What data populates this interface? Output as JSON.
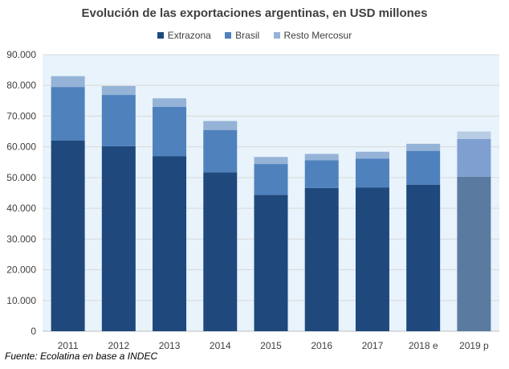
{
  "chart_data": {
    "type": "bar",
    "stacked": true,
    "title": "Evolución de las exportaciones argentinas, en USD millones",
    "categories": [
      "2011",
      "2012",
      "2013",
      "2014",
      "2015",
      "2016",
      "2017",
      "2018 e",
      "2019 p"
    ],
    "series": [
      {
        "name": "Extrazona",
        "color": "#1f497d",
        "values": [
          62100,
          60200,
          57000,
          51700,
          44400,
          46600,
          46800,
          47700,
          50300
        ]
      },
      {
        "name": "Brasil",
        "color": "#4f81bd",
        "values": [
          17400,
          16700,
          16000,
          13800,
          10000,
          9000,
          9400,
          11000,
          12300
        ]
      },
      {
        "name": "Resto Mercosur",
        "color": "#95b3d7",
        "values": [
          3500,
          2900,
          2800,
          2900,
          2300,
          2100,
          2200,
          2300,
          2400
        ]
      }
    ],
    "last_bar_colors": [
      "#5a7aa0",
      "#7f9fd0",
      "#b8cce4"
    ],
    "ylim": [
      0,
      90000
    ],
    "yticks": [
      0,
      10000,
      20000,
      30000,
      40000,
      50000,
      60000,
      70000,
      80000,
      90000
    ],
    "ytick_labels": [
      "0",
      "10.000",
      "20.000",
      "30.000",
      "40.000",
      "50.000",
      "60.000",
      "70.000",
      "80.000",
      "90.000"
    ],
    "xlabel": "",
    "ylabel": "",
    "grid": true,
    "legend_position": "top",
    "plot_background": "#e8f3fb",
    "source": "Fuente: Ecolatina en base a INDEC"
  }
}
